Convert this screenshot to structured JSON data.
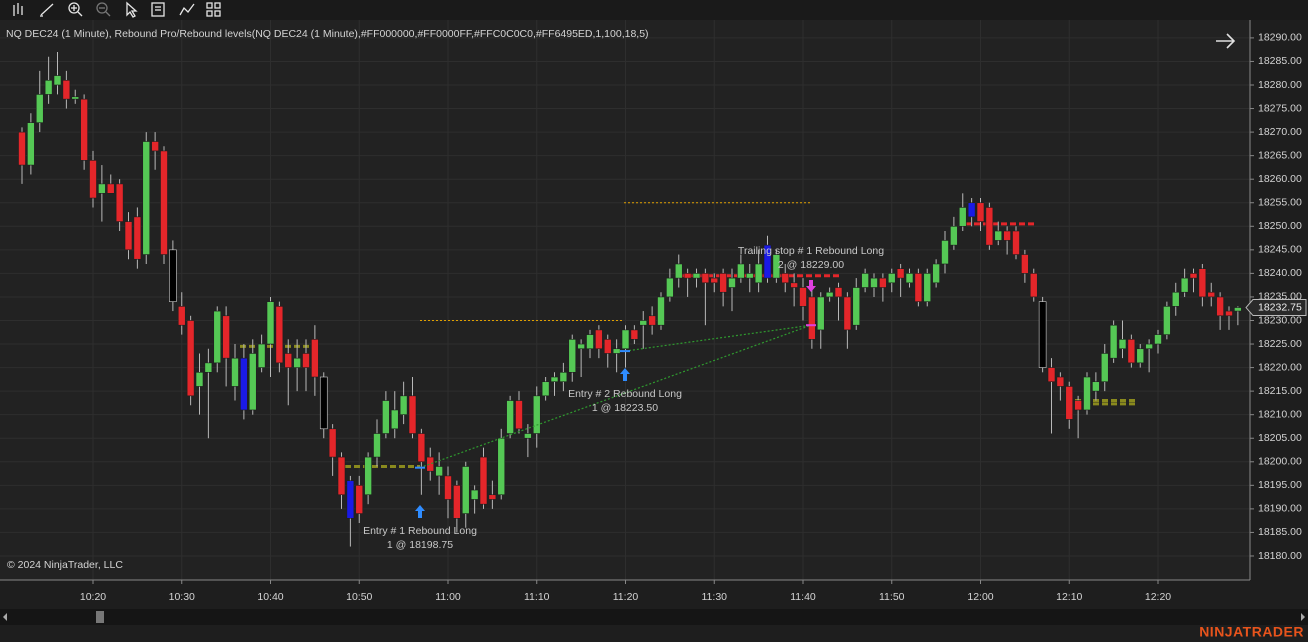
{
  "chart_data": {
    "type": "candlestick",
    "title": "NQ DEC24 (1 Minute), Rebound Pro/Rebound levels(NQ DEC24 (1 Minute),#FF000000,#FF0000FF,#FFC0C0C0,#FF6495ED,1,100,18,5)",
    "footer": "© 2024 NinjaTrader, LLC",
    "categories": [
      null,
      null,
      null,
      null,
      null,
      null,
      null,
      null,
      "10:20",
      null,
      null,
      null,
      null,
      null,
      null,
      null,
      null,
      null,
      "10:30",
      null,
      null,
      null,
      null,
      null,
      null,
      null,
      null,
      null,
      "10:40",
      null,
      null,
      null,
      null,
      null,
      null,
      null,
      null,
      null,
      "10:50",
      null,
      null,
      null,
      null,
      null,
      null,
      null,
      null,
      null,
      "11:00",
      null,
      null,
      null,
      null,
      null,
      null,
      null,
      null,
      null,
      "11:10",
      null,
      null,
      null,
      null,
      null,
      null,
      null,
      null,
      null,
      "11:20",
      null,
      null,
      null,
      null,
      null,
      null,
      null,
      null,
      null,
      "11:30",
      null,
      null,
      null,
      null,
      null,
      null,
      null,
      null,
      null,
      "11:40",
      null,
      null,
      null,
      null,
      null,
      null,
      null,
      null,
      null,
      "11:50",
      null,
      null,
      null,
      null,
      null,
      null,
      null,
      null,
      null,
      "12:00",
      null,
      null,
      null,
      null,
      null,
      null,
      null,
      null,
      null,
      "12:10",
      null,
      null,
      null,
      null,
      null,
      null,
      null,
      null,
      null,
      "12:20",
      null,
      null,
      null,
      null,
      null,
      null,
      null,
      null,
      null
    ],
    "open": [
      18270,
      18263,
      18272,
      18278,
      18280,
      18281,
      18277,
      18277,
      18264,
      18257,
      18259,
      18259,
      18251,
      18252,
      18244,
      18268,
      18266,
      18245,
      18233,
      18230,
      18216,
      18219,
      18221,
      18231,
      18216,
      18222,
      18211,
      18220,
      18225,
      18233,
      18223,
      18220,
      18223,
      18226,
      18218,
      18207,
      18201,
      18196,
      18195,
      18193,
      18201,
      18206,
      18207,
      18210,
      18214,
      18206,
      18201,
      18197,
      18197,
      18195,
      18189,
      18192,
      18201,
      18193,
      18193,
      18206,
      18213,
      18205,
      18206,
      18214,
      18217,
      18217,
      18219,
      18224,
      18224,
      18228,
      18226,
      18223,
      18224,
      18228,
      18229,
      18231,
      18229,
      18235,
      18239,
      18240,
      18239,
      18240,
      18239,
      18240,
      18237,
      18239,
      18239,
      18238,
      18246,
      18239,
      18240,
      18238,
      18237,
      18235,
      18228,
      18235,
      18237,
      18235,
      18229,
      18237,
      18237,
      18239,
      18238,
      18241,
      18238,
      18240,
      18234,
      18238,
      18242,
      18246,
      18250,
      18252,
      18255,
      18254,
      18247,
      18249,
      18249,
      18244,
      18240,
      18234,
      18220,
      18218,
      18216,
      18213,
      18211,
      18215,
      18217,
      18222,
      18224,
      18226,
      18221,
      18224,
      18225,
      18227,
      18233,
      18236,
      18240,
      18241,
      18236,
      18235,
      18232,
      18232
    ],
    "high": [
      18271,
      18274,
      18283,
      18286,
      18287,
      18283,
      18279,
      18278,
      18266,
      18263,
      18261,
      18260,
      18253,
      18254,
      18270,
      18270,
      18267,
      18247,
      18236,
      18231,
      18223,
      18224,
      18233,
      18233,
      18225,
      18225,
      18226,
      18227,
      18235,
      18234,
      18226,
      18226,
      18226,
      18229,
      18219,
      18208,
      18202,
      18197,
      18197,
      18202,
      18209,
      18215,
      18215,
      18217,
      18218,
      18207,
      18203,
      18202,
      18199,
      18196,
      18200,
      18195,
      18203,
      18196,
      18207,
      18214,
      18215,
      18208,
      18216,
      18218,
      18219,
      18221,
      18227,
      18226,
      18228,
      18229,
      18227,
      18226,
      18229,
      18229,
      18232,
      18233,
      18236,
      18241,
      18244,
      18241,
      18241,
      18241,
      18240,
      18241,
      18241,
      18244,
      18242,
      18245,
      18248,
      18245,
      18242,
      18240,
      18239,
      18237,
      18236,
      18237,
      18238,
      18236,
      18239,
      18241,
      18240,
      18240,
      18241,
      18242,
      18241,
      18241,
      18241,
      18243,
      18249,
      18252,
      18257,
      18256,
      18256,
      18255,
      18251,
      18250,
      18250,
      18245,
      18241,
      18235,
      18222,
      18219,
      18217,
      18214,
      18219,
      18219,
      18225,
      18230,
      18230,
      18227,
      18225,
      18226,
      18228,
      18234,
      18238,
      18241,
      18241,
      18242,
      18238,
      18236,
      18233,
      18233
    ],
    "low": [
      18259,
      18261,
      18270,
      18276,
      18278,
      18275,
      18276,
      18262,
      18254,
      18251,
      18257,
      18249,
      18243,
      18241,
      18242,
      18262,
      18242,
      18232,
      18227,
      18212,
      18210,
      18205,
      18219,
      18216,
      18213,
      18209,
      18210,
      18219,
      18218,
      18219,
      18212,
      18215,
      18215,
      18214,
      18205,
      18197,
      18190,
      18182,
      18187,
      18191,
      18199,
      18205,
      18205,
      18208,
      18205,
      18193,
      18196,
      18193,
      18188,
      18185,
      18186,
      18189,
      18190,
      18190,
      18192,
      18205,
      18206,
      18201,
      18203,
      18213,
      18214,
      18215,
      18217,
      18218,
      18222,
      18222,
      18220,
      18219,
      18220,
      18225,
      18224,
      18227,
      18228,
      18234,
      18237,
      18235,
      18237,
      18229,
      18236,
      18233,
      18232,
      18238,
      18236,
      18236,
      18238,
      18238,
      18236,
      18233,
      18230,
      18224,
      18224,
      18234,
      18230,
      18224,
      18228,
      18236,
      18235,
      18234,
      18236,
      18235,
      18237,
      18233,
      18233,
      18237,
      18240,
      18245,
      18249,
      18250,
      18249,
      18245,
      18246,
      18244,
      18243,
      18238,
      18234,
      18219,
      18206,
      18213,
      18207,
      18205,
      18210,
      18213,
      18215,
      18221,
      18222,
      18220,
      18220,
      18219,
      18223,
      18226,
      18231,
      18235,
      18236,
      18233,
      18233,
      18228,
      18228,
      18229
    ],
    "close": [
      18263,
      18272,
      18278,
      18281,
      18282,
      18277,
      18277.5,
      18264,
      18256,
      18259,
      18257,
      18251,
      18245,
      18243,
      18268,
      18266,
      18244,
      18234,
      18229,
      18214,
      18219,
      18221,
      18232,
      18222,
      18222,
      18211,
      18223,
      18225,
      18234,
      18221,
      18220,
      18222,
      18220,
      18218,
      18207,
      18201,
      18193,
      18188,
      18189,
      18201,
      18206,
      18213,
      18211,
      18214,
      18206,
      18200,
      18198,
      18199,
      18192,
      18188,
      18199,
      18194,
      18191,
      18192,
      18205,
      18213,
      18207,
      18206,
      18214,
      18217,
      18218,
      18219,
      18226,
      18225,
      18227,
      18224,
      18223,
      18224,
      18228,
      18226,
      18230,
      18229,
      18235,
      18239,
      18242,
      18239,
      18240,
      18238,
      18238,
      18236,
      18239,
      18242,
      18240,
      18242,
      18239,
      18244,
      18238,
      18237,
      18233,
      18226,
      18235,
      18236,
      18235,
      18228,
      18237,
      18240,
      18239,
      18237,
      18240,
      18239,
      18240,
      18234,
      18240,
      18242,
      18247,
      18250,
      18254,
      18255,
      18251,
      18246,
      18249,
      18247,
      18244,
      18240,
      18235,
      18220,
      18217,
      18216,
      18209,
      18211,
      18218,
      18217,
      18223,
      18229,
      18226,
      18221,
      18224,
      18225,
      18227,
      18233,
      18236,
      18239,
      18239,
      18235,
      18235,
      18231,
      18231,
      18232.75
    ],
    "colors": [
      "#e4262a",
      "#55c855",
      "#55c855",
      "#55c855",
      "#55c855",
      "#e4262a",
      "#55c855",
      "#e4262a",
      "#e4262a",
      "#55c855",
      "#e4262a",
      "#e4262a",
      "#e4262a",
      "#e4262a",
      "#55c855",
      "#e4262a",
      "#e4262a",
      "#000000",
      "#e4262a",
      "#e4262a",
      "#55c855",
      "#55c855",
      "#55c855",
      "#e4262a",
      "#55c855",
      "#1a1ae6",
      "#55c855",
      "#55c855",
      "#55c855",
      "#e4262a",
      "#e4262a",
      "#55c855",
      "#e4262a",
      "#e4262a",
      "#000000",
      "#e4262a",
      "#e4262a",
      "#1a1ae6",
      "#e4262a",
      "#55c855",
      "#55c855",
      "#55c855",
      "#55c855",
      "#55c855",
      "#e4262a",
      "#e4262a",
      "#e4262a",
      "#55c855",
      "#e4262a",
      "#e4262a",
      "#55c855",
      "#55c855",
      "#e4262a",
      "#e4262a",
      "#55c855",
      "#55c855",
      "#e4262a",
      "#55c855",
      "#55c855",
      "#55c855",
      "#55c855",
      "#55c855",
      "#55c855",
      "#55c855",
      "#55c855",
      "#e4262a",
      "#e4262a",
      "#55c855",
      "#55c855",
      "#e4262a",
      "#55c855",
      "#e4262a",
      "#55c855",
      "#55c855",
      "#55c855",
      "#e4262a",
      "#55c855",
      "#e4262a",
      "#e4262a",
      "#e4262a",
      "#55c855",
      "#55c855",
      "#55c855",
      "#55c855",
      "#1a1ae6",
      "#55c855",
      "#e4262a",
      "#e4262a",
      "#e4262a",
      "#e4262a",
      "#55c855",
      "#55c855",
      "#e4262a",
      "#e4262a",
      "#55c855",
      "#55c855",
      "#55c855",
      "#e4262a",
      "#55c855",
      "#e4262a",
      "#55c855",
      "#e4262a",
      "#55c855",
      "#55c855",
      "#55c855",
      "#55c855",
      "#55c855",
      "#1a1ae6",
      "#e4262a",
      "#e4262a",
      "#55c855",
      "#e4262a",
      "#e4262a",
      "#e4262a",
      "#e4262a",
      "#000000",
      "#e4262a",
      "#e4262a",
      "#e4262a",
      "#e4262a",
      "#55c855",
      "#55c855",
      "#55c855",
      "#55c855",
      "#55c855",
      "#e4262a",
      "#55c855",
      "#55c855",
      "#55c855",
      "#55c855",
      "#55c855",
      "#55c855",
      "#e4262a",
      "#e4262a",
      "#e4262a",
      "#e4262a",
      "#e4262a",
      "#55c855"
    ],
    "ylim": [
      18174.9,
      18293.8
    ],
    "yticks": [
      {
        "value": 18180,
        "label": "18180.00"
      },
      {
        "value": 18185,
        "label": "18185.00"
      },
      {
        "value": 18190,
        "label": "18190.00"
      },
      {
        "value": 18195,
        "label": "18195.00"
      },
      {
        "value": 18200,
        "label": "18200.00"
      },
      {
        "value": 18205,
        "label": "18205.00"
      },
      {
        "value": 18210,
        "label": "18210.00"
      },
      {
        "value": 18215,
        "label": "18215.00"
      },
      {
        "value": 18220,
        "label": "18220.00"
      },
      {
        "value": 18225,
        "label": "18225.00"
      },
      {
        "value": 18230,
        "label": "18230.00"
      },
      {
        "value": 18235,
        "label": "18235.00"
      },
      {
        "value": 18240,
        "label": "18240.00"
      },
      {
        "value": 18245,
        "label": "18245.00"
      },
      {
        "value": 18250,
        "label": "18250.00"
      },
      {
        "value": 18255,
        "label": "18255.00"
      },
      {
        "value": 18260,
        "label": "18260.00"
      },
      {
        "value": 18265,
        "label": "18265.00"
      },
      {
        "value": 18270,
        "label": "18270.00"
      },
      {
        "value": 18275,
        "label": "18275.00"
      },
      {
        "value": 18280,
        "label": "18280.00"
      },
      {
        "value": 18285,
        "label": "18285.00"
      },
      {
        "value": 18290,
        "label": "18290.00"
      }
    ],
    "last_price": 18232.75,
    "grid": true,
    "levels": [
      {
        "price": 18224.5,
        "color": "#8a8a1e",
        "style": "dashed"
      },
      {
        "price": 18199,
        "color": "#8a8a1e",
        "style": "dashed"
      },
      {
        "price": 18213,
        "color": "#8a8a1e",
        "style": "dashed"
      },
      {
        "price": 18212.3,
        "color": "#8a8a1e",
        "style": "dashed"
      },
      {
        "price": 18239.5,
        "color": "#e4262a",
        "style": "dashed"
      },
      {
        "price": 18250.5,
        "color": "#e4262a",
        "style": "dashed"
      },
      {
        "price": 18255,
        "color": "#e0a000",
        "style": "dotted"
      },
      {
        "price": 18230,
        "color": "#e0a000",
        "style": "dotted"
      }
    ],
    "executions": [
      {
        "text": "Entry # 1 Rebound Long",
        "label": "1 @ 18198.75",
        "price": 18198.75,
        "color": "#2f8cff"
      },
      {
        "text": "Entry # 2 Rebound Long",
        "label": "1 @ 18223.50",
        "price": 18223.5,
        "color": "#2f8cff"
      },
      {
        "text": "Trailing stop # 1 Rebound Long",
        "label": "2 @ 18229.00",
        "price": 18229,
        "color": "#e040e0"
      }
    ]
  },
  "brand": "NINJATRADER"
}
